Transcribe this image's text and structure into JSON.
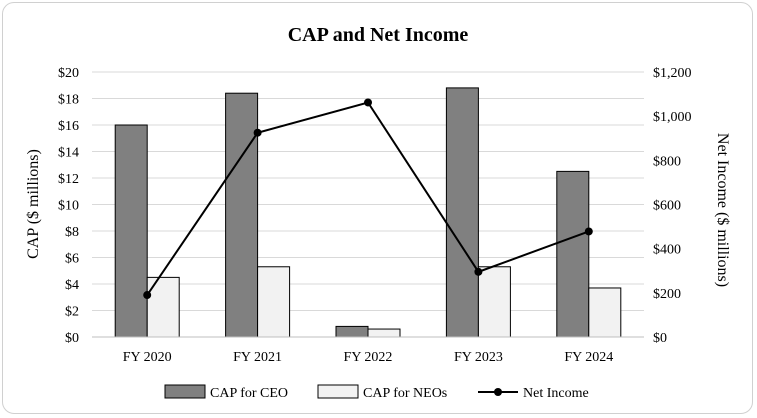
{
  "chart_data": {
    "type": "bar",
    "title": "CAP and Net Income",
    "categories": [
      "FY 2020",
      "FY 2021",
      "FY 2022",
      "FY 2023",
      "FY 2024"
    ],
    "series": [
      {
        "name": "CAP for CEO",
        "type": "bar",
        "axis": "left",
        "color": "#808080",
        "values": [
          16.0,
          18.4,
          0.8,
          18.8,
          12.5
        ]
      },
      {
        "name": "CAP for NEOs",
        "type": "bar",
        "axis": "left",
        "color": "#f2f2f2",
        "values": [
          4.5,
          5.3,
          0.6,
          5.3,
          3.7
        ]
      },
      {
        "name": "Net Income",
        "type": "line",
        "axis": "right",
        "color": "#000000",
        "values": [
          190,
          925,
          1062,
          295,
          478
        ]
      }
    ],
    "ylabel": "CAP ($ millions)",
    "y2label": "Net Income ($ millions)",
    "ylim": [
      0,
      20
    ],
    "y2lim": [
      0,
      1200
    ],
    "y_ticks": [
      "$0",
      "$2",
      "$4",
      "$6",
      "$8",
      "$10",
      "$12",
      "$14",
      "$16",
      "$18",
      "$20"
    ],
    "y2_ticks": [
      "$0",
      "$200",
      "$400",
      "$600",
      "$800",
      "$1,000",
      "$1,200"
    ],
    "grid": true,
    "legend_position": "bottom"
  }
}
